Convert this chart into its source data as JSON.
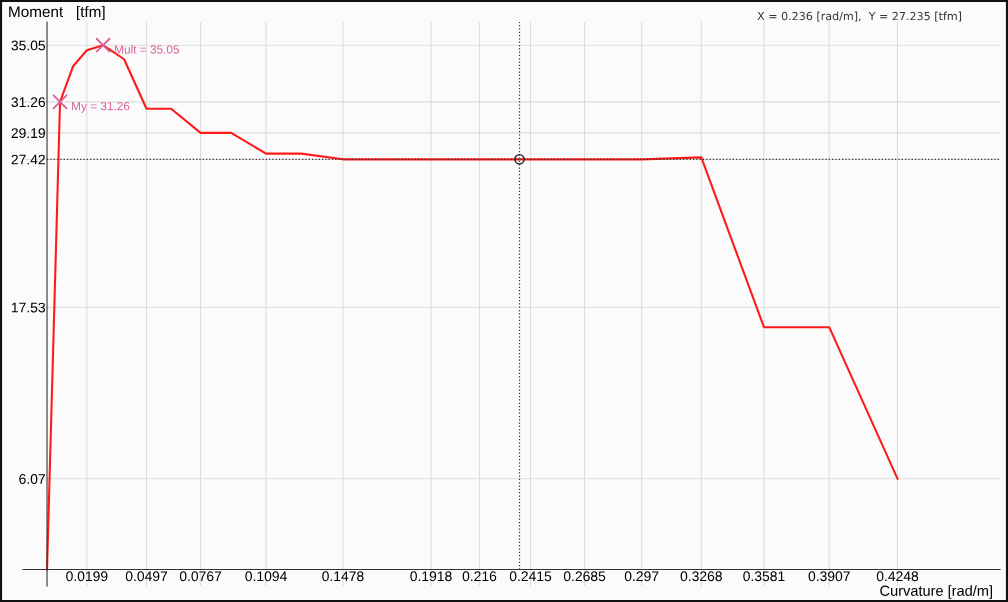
{
  "chart_data": {
    "type": "line",
    "xlabel": "Curvature [rad/m]",
    "ylabel": "Moment   [tfm]",
    "x": [
      0,
      0.0065,
      0.013,
      0.0199,
      0.028,
      0.0385,
      0.0497,
      0.062,
      0.0767,
      0.092,
      0.1094,
      0.127,
      0.1478,
      0.2415,
      0.297,
      0.3268,
      0.3581,
      0.3907,
      0.4248
    ],
    "series": [
      {
        "color": "#ff1a1a",
        "values": [
          0,
          31.26,
          33.64,
          34.71,
          35.05,
          34.11,
          30.8,
          30.8,
          29.19,
          29.19,
          27.8,
          27.8,
          27.42,
          27.42,
          27.42,
          27.55,
          16.2,
          16.2,
          6.07
        ]
      },
      {
        "type": "scatter",
        "marker": "circle",
        "color": "#222222",
        "x": [
          0.236
        ],
        "values": [
          27.42
        ]
      }
    ],
    "xlim": [
      -0.012,
      0.476
    ],
    "ylim": [
      -1.1,
      36.6
    ],
    "xticks": [
      0.0199,
      0.0497,
      0.0767,
      0.1094,
      0.1478,
      0.1918,
      0.216,
      0.2415,
      0.2685,
      0.297,
      0.3268,
      0.3581,
      0.3907,
      0.4248
    ],
    "yticks": [
      6.07,
      17.53,
      27.42,
      29.19,
      31.26,
      35.05
    ],
    "grid": true,
    "marker": "none",
    "line_style": "solid",
    "ref_lines": [
      {
        "axis": "x",
        "value": 0.236,
        "color": "#333333",
        "line_style": "dotted"
      },
      {
        "axis": "y",
        "value": 27.42,
        "color": "#333333",
        "line_style": "dotted"
      }
    ],
    "annotations": [
      {
        "text": "My = 31.26",
        "x": 0.0065,
        "y": 31.26
      },
      {
        "text": "Mult = 35.05",
        "x": 0.028,
        "y": 35.05
      },
      "X = 0.236 [rad/m],  Y = 27.235 [tfm]"
    ]
  }
}
